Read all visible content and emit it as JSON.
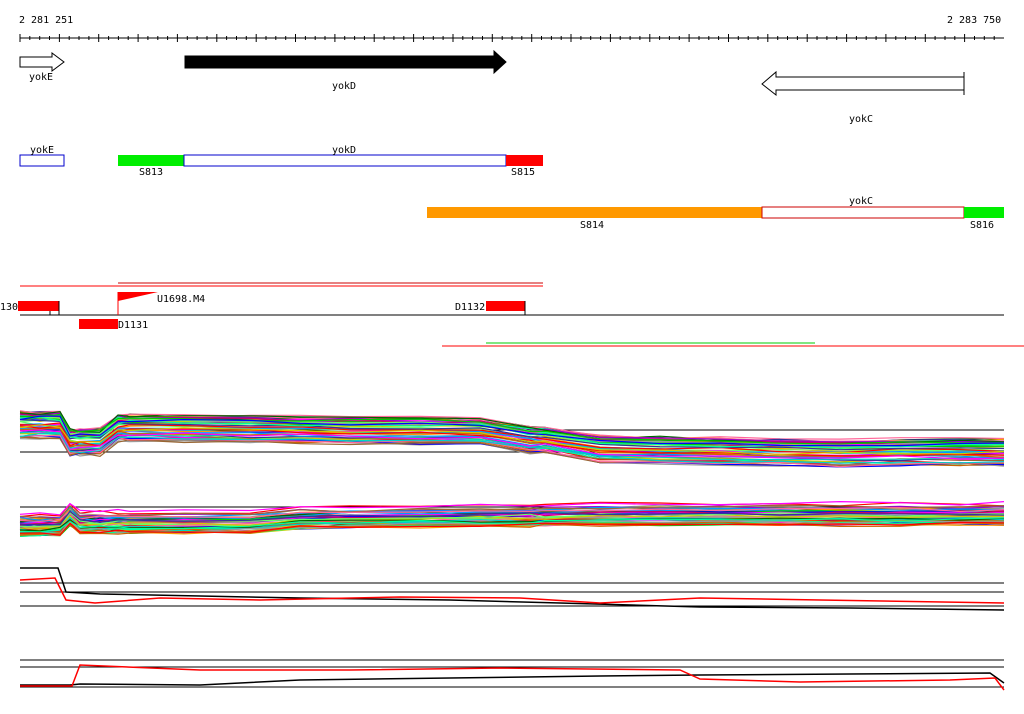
{
  "coords": {
    "start": "2 281 251",
    "end": "2 283 750"
  },
  "genes": [
    {
      "name": "yokE",
      "strand": "+",
      "style": "outline"
    },
    {
      "name": "yokD",
      "strand": "+",
      "style": "filled"
    },
    {
      "name": "yokC",
      "strand": "-",
      "style": "outline"
    }
  ],
  "transcripts": {
    "row1": {
      "gene_yokE": "yokE",
      "gene_yokD": "yokD",
      "seg_left": "S813",
      "seg_right": "S815"
    },
    "row2": {
      "gene_yokC": "yokC",
      "seg_left": "S814",
      "seg_right": "S816"
    }
  },
  "features": {
    "left_cut": "130",
    "promoter": "U1698.M4",
    "d1131": "D1131",
    "d1132": "D1132"
  },
  "colors": {
    "green": "#00ee00",
    "red": "#ff0000",
    "orange": "#ff9900",
    "blue": "#0000cc",
    "dark_red": "#cc0000"
  },
  "expression_tracks": [
    "multi-condition-upper",
    "multi-condition-lower",
    "two-condition-1",
    "two-condition-2"
  ]
}
